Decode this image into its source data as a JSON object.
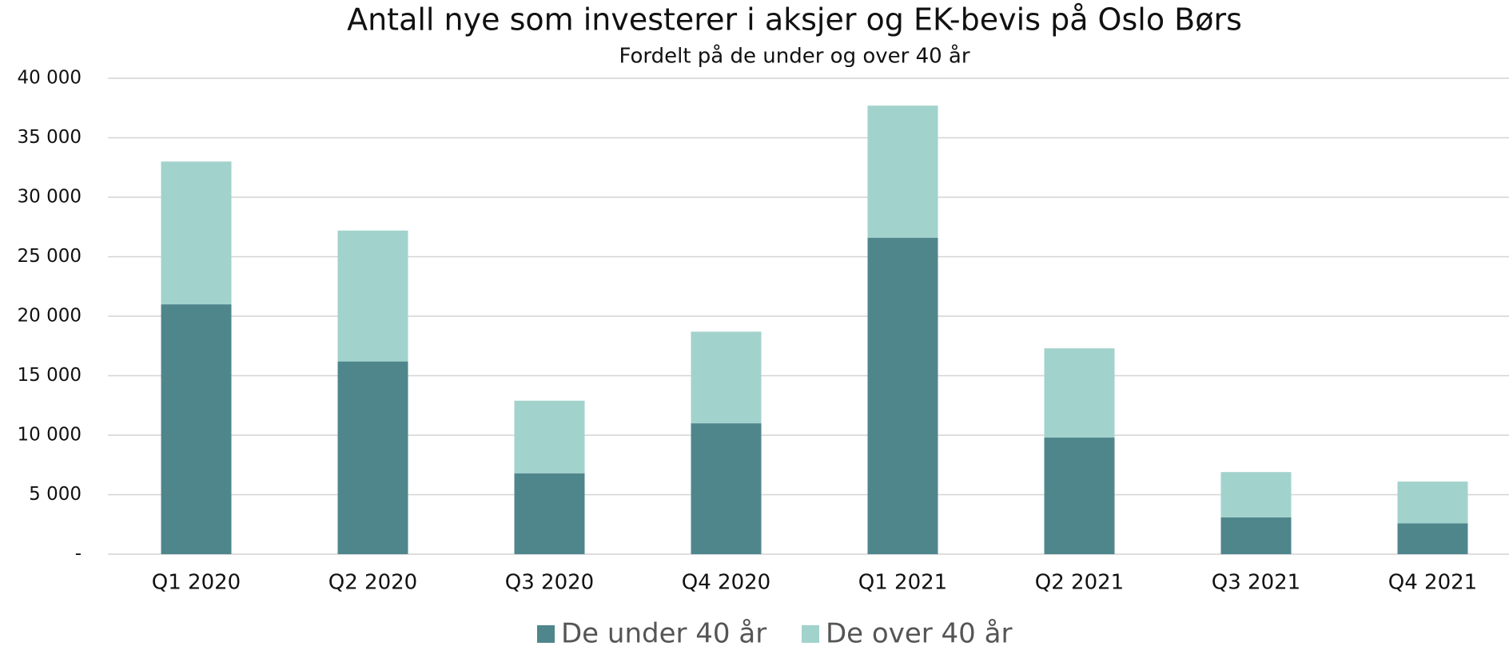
{
  "chart_data": {
    "type": "stacked_bar",
    "title": "Antall nye som investerer i aksjer og EK-bevis på Oslo Børs",
    "subtitle": "Fordelt på de under og over 40 år",
    "categories": [
      "Q1 2020",
      "Q2 2020",
      "Q3 2020",
      "Q4 2020",
      "Q1 2021",
      "Q2 2021",
      "Q3 2021",
      "Q4 2021"
    ],
    "series": [
      {
        "name": "De under 40 år",
        "color": "#4f868c",
        "values": [
          21000,
          16200,
          6800,
          11000,
          26600,
          9800,
          3100,
          2600
        ]
      },
      {
        "name": "De over 40 år",
        "color": "#a2d2cc",
        "values": [
          12000,
          11000,
          6100,
          7700,
          11100,
          7500,
          3800,
          3500
        ]
      }
    ],
    "ylim": [
      0,
      40000
    ],
    "yticks": [
      {
        "value": 0,
        "label": "-"
      },
      {
        "value": 5000,
        "label": "5 000"
      },
      {
        "value": 10000,
        "label": "10 000"
      },
      {
        "value": 15000,
        "label": "15 000"
      },
      {
        "value": 20000,
        "label": "20 000"
      },
      {
        "value": 25000,
        "label": "25 000"
      },
      {
        "value": 30000,
        "label": "30 000"
      },
      {
        "value": 35000,
        "label": "35 000"
      },
      {
        "value": 40000,
        "label": "40 000"
      }
    ],
    "grid": true,
    "legend": "bottom"
  }
}
